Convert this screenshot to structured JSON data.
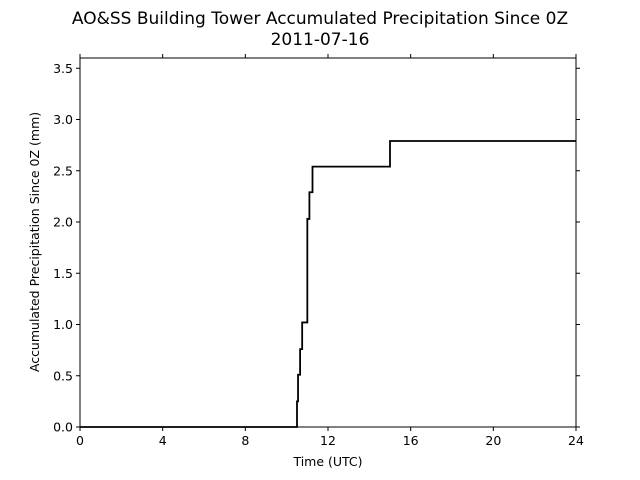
{
  "chart_data": {
    "type": "line",
    "title": "AO&SS Building Tower Accumulated Precipitation Since 0Z",
    "subtitle": "2011-07-16",
    "xlabel": "Time (UTC)",
    "ylabel": "Accumulated Precipitation Since 0Z (mm)",
    "xlim": [
      0,
      24
    ],
    "ylim": [
      0,
      3.6
    ],
    "xticks": [
      0,
      4,
      8,
      12,
      16,
      20,
      24
    ],
    "xtick_labels": [
      "0",
      "4",
      "8",
      "12",
      "16",
      "20",
      "24"
    ],
    "yticks": [
      0,
      0.5,
      1.0,
      1.5,
      2.0,
      2.5,
      3.0,
      3.5
    ],
    "ytick_labels": [
      "0.0",
      "0.5",
      "1.0",
      "1.5",
      "2.0",
      "2.5",
      "3.0",
      "3.5"
    ],
    "grid": false,
    "line_color": "#000000",
    "series": [
      {
        "step": true,
        "x": [
          0,
          10.5,
          10.55,
          10.65,
          10.75,
          10.85,
          11.0,
          11.1,
          11.25,
          15.0,
          24
        ],
        "y": [
          0,
          0.25,
          0.51,
          0.76,
          1.02,
          1.02,
          2.03,
          2.29,
          2.54,
          2.79,
          2.79
        ]
      }
    ]
  }
}
